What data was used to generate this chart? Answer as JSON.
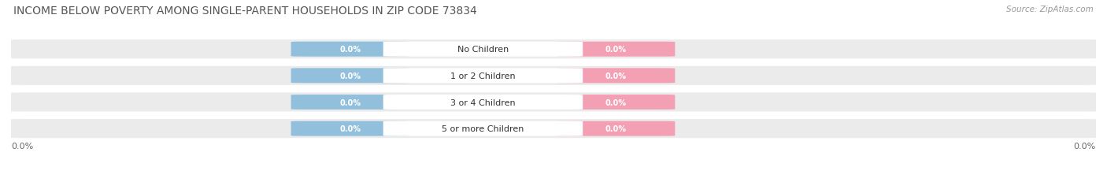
{
  "title": "INCOME BELOW POVERTY AMONG SINGLE-PARENT HOUSEHOLDS IN ZIP CODE 73834",
  "source": "Source: ZipAtlas.com",
  "categories": [
    "No Children",
    "1 or 2 Children",
    "3 or 4 Children",
    "5 or more Children"
  ],
  "father_values": [
    0.0,
    0.0,
    0.0,
    0.0
  ],
  "mother_values": [
    0.0,
    0.0,
    0.0,
    0.0
  ],
  "father_color": "#92C0DC",
  "mother_color": "#F4A0B4",
  "bar_bg_color": "#EBEBEB",
  "title_fontsize": 10,
  "source_fontsize": 7.5,
  "bg_color": "#FFFFFF",
  "axis_label_left": "0.0%",
  "axis_label_right": "0.0%",
  "cat_label_fontsize": 8,
  "val_label_fontsize": 7
}
